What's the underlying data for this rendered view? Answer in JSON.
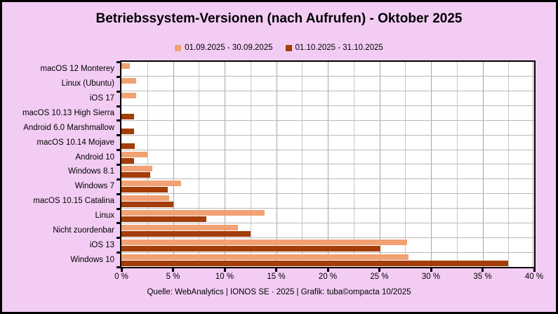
{
  "page": {
    "bg_color": "#F3CCF4",
    "footer": "Quelle: WebAnalytics | IONOS SE · 2025 | Grafik: tuba©ompacta 10/2025"
  },
  "chart_data": {
    "type": "bar",
    "orientation": "horizontal",
    "title": "Betriebssystem-Versionen (nach Aufrufen) - Oktober 2025",
    "unit": "%",
    "categories": [
      "macOS 12 Monterey",
      "Linux (Ubuntu)",
      "iOS 17",
      "macOS 10.13 High Sierra",
      "Android 6.0 Marshmallow",
      "macOS 10.14 Mojave",
      "Android 10",
      "Windows 8.1",
      "Windows 7",
      "macOS 10.15 Catalina",
      "Linux",
      "Nicht zuordenbar",
      "iOS 13",
      "Windows 10"
    ],
    "series": [
      {
        "name": "01.09.2025 - 30.09.2025",
        "color": "#F1A173",
        "values": [
          0.8,
          1.4,
          1.4,
          0,
          0,
          0,
          2.5,
          3.0,
          5.8,
          4.6,
          13.9,
          11.3,
          27.7,
          27.8
        ]
      },
      {
        "name": "01.10.2025 - 31.10.2025",
        "color": "#A43D08",
        "values": [
          0,
          0,
          0,
          1.2,
          1.2,
          1.3,
          1.2,
          2.8,
          4.5,
          5.0,
          8.2,
          12.5,
          25.1,
          37.5
        ]
      }
    ],
    "xlabel": "",
    "ylabel": "",
    "xlim": [
      0,
      40
    ],
    "x_tick_labels": [
      "0 %",
      "5 %",
      "10 %",
      "15 %",
      "20 %",
      "25 %",
      "30 %",
      "35 %",
      "40 %"
    ],
    "grid": true,
    "grid_minor_step": 2.5,
    "grid_major_step": 5,
    "grid_minor_color": "#c6c6c6",
    "grid_major_color": "#a6a6a6",
    "legend_position": "top-center"
  }
}
